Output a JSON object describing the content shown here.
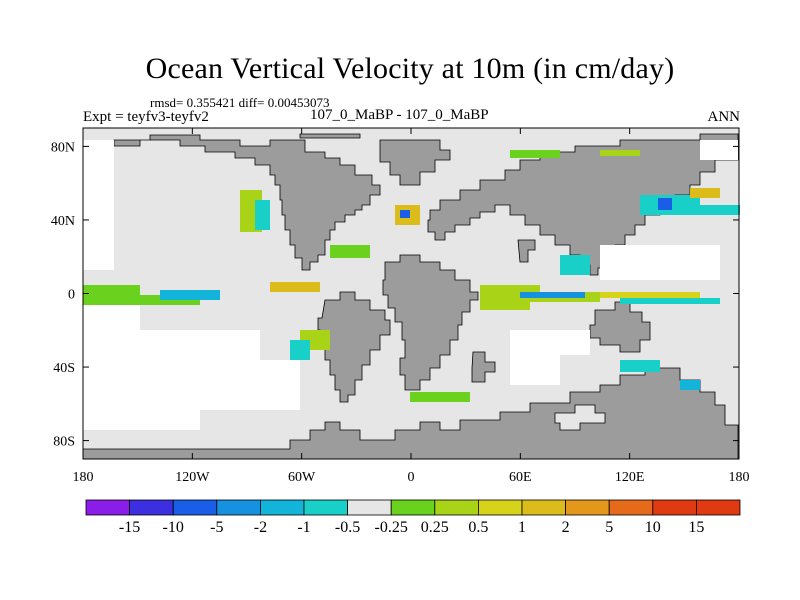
{
  "title": "Ocean Vertical Velocity at 10m (in cm/day)",
  "stats": "rmsd= 0.355421 diff= 0.00453073",
  "experiment": "Expt = teyfv3-teyfv2",
  "case_label": "107_0_MaBP - 107_0_MaBP",
  "season": "ANN",
  "axes": {
    "x_ticks": [
      "180",
      "120W",
      "60W",
      "0",
      "60E",
      "120E",
      "180"
    ],
    "y_ticks": [
      "80N",
      "40N",
      "0",
      "40S",
      "80S"
    ]
  },
  "colorbar": {
    "labels": [
      "-15",
      "-10",
      "-5",
      "-2",
      "-1",
      "-0.5",
      "-0.25",
      "0.25",
      "0.5",
      "1",
      "2",
      "5",
      "10",
      "15"
    ],
    "colors": [
      "#8a1de8",
      "#3b2fe0",
      "#1a5ee8",
      "#1591e0",
      "#12b4da",
      "#18d0c8",
      "#e6e6e6",
      "#6ad21e",
      "#a8d316",
      "#d7d21a",
      "#dcbc1a",
      "#e4981b",
      "#e56a1a",
      "#e03a12"
    ]
  },
  "colors": {
    "land": "#9c9c9c",
    "ocean_neutral": "#e6e6e6"
  }
}
